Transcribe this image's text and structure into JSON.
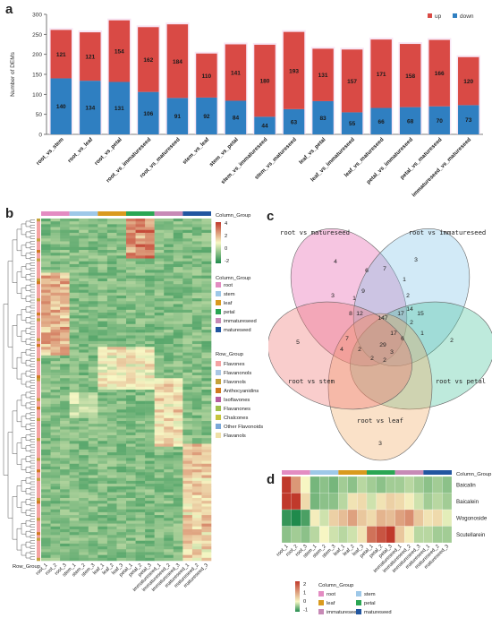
{
  "panel_labels": {
    "a": "a",
    "b": "b",
    "c": "c",
    "d": "d"
  },
  "chart_data": [
    {
      "type": "bar",
      "stacked": true,
      "ylabel": "Number of DEMs",
      "ylim": [
        0,
        300
      ],
      "yticks": [
        0,
        50,
        100,
        150,
        200,
        250,
        300
      ],
      "legend": "top-right",
      "categories": [
        "root_vs_stem",
        "root_vs_leaf",
        "root_vs_petal",
        "root_vs_immatureseed",
        "root_vs_matureseed",
        "stem_vs_leaf",
        "stem_vs_petal",
        "stem_vs_immatureseed",
        "stem_vs_matureseed",
        "leaf_vs_petal",
        "leaf_vs_immatureseed",
        "leaf_vs_matureseed",
        "petal_vs_immatureseed",
        "petal_vs_matureseed",
        "immatureseed_vs_matureseed"
      ],
      "series": [
        {
          "name": "down",
          "color": "#2f7fc1",
          "values": [
            140,
            134,
            131,
            106,
            91,
            92,
            84,
            44,
            63,
            83,
            55,
            66,
            68,
            70,
            73
          ]
        },
        {
          "name": "up",
          "color": "#d94a45",
          "values": [
            121,
            121,
            154,
            162,
            184,
            110,
            141,
            180,
            193,
            131,
            157,
            171,
            158,
            166,
            120
          ]
        }
      ]
    },
    {
      "type": "heatmap",
      "column_group_title": "Column_Group",
      "row_group_title": "Row_Group",
      "row_group_axis_label": "Row_Group",
      "color_scale": {
        "ticks": [
          "4",
          "2",
          "0",
          "-2"
        ],
        "colors": [
          "#c0392b",
          "#f7f7c4",
          "#1f8a4c"
        ]
      },
      "column_groups": [
        {
          "name": "root",
          "color": "#e38cc2"
        },
        {
          "name": "stem",
          "color": "#9ec8e8"
        },
        {
          "name": "leaf",
          "color": "#d99a1e"
        },
        {
          "name": "petal",
          "color": "#2aa653"
        },
        {
          "name": "immatureseed",
          "color": "#c78ab6"
        },
        {
          "name": "matureseed",
          "color": "#2256a0"
        }
      ],
      "row_groups": [
        {
          "name": "Flavones",
          "color": "#f4a3a3"
        },
        {
          "name": "Flavanonols",
          "color": "#a9c7e4"
        },
        {
          "name": "Flavonols",
          "color": "#c4a23a"
        },
        {
          "name": "Anthocyanidins",
          "color": "#d07a1e"
        },
        {
          "name": "Isoflavones",
          "color": "#b65c9e"
        },
        {
          "name": "Flavanones",
          "color": "#9fbf4a"
        },
        {
          "name": "Chalcones",
          "color": "#c6c43c"
        },
        {
          "name": "Other Flavonoids",
          "color": "#7aa8d8"
        },
        {
          "name": "Flavanols",
          "color": "#efe0a8"
        }
      ],
      "columns": [
        "root_1",
        "root_2",
        "root_3",
        "stem_1",
        "stem_2",
        "stem_3",
        "leaf_1",
        "leaf_2",
        "leaf_3",
        "petal_1",
        "petal_2",
        "petal_3",
        "immatureseed_1",
        "immatureseed_2",
        "immatureseed_3",
        "matureseed_1",
        "matureseed_2",
        "matureseed_3"
      ]
    },
    {
      "type": "venn",
      "sets": [
        "root vs matureseed",
        "root vs immatureseed",
        "root vs petal",
        "root vs leaf",
        "root vs stem"
      ],
      "region_counts": [
        "4",
        "3",
        "2",
        "3",
        "5",
        "6",
        "7",
        "1",
        "2",
        "3",
        "1",
        "9",
        "2",
        "1",
        "8",
        "12",
        "147",
        "17",
        "14",
        "15",
        "7",
        "29",
        "17",
        "6",
        "3",
        "4",
        "2",
        "2",
        "2"
      ]
    },
    {
      "type": "heatmap",
      "column_group_title": "Column_Group",
      "legend_title": "Column_Group",
      "rows": [
        "Baicalin",
        "Baicalein",
        "Wogonoside",
        "Scutellarein"
      ],
      "columns": [
        "root_1",
        "root_2",
        "root_3",
        "stem_1",
        "stem_2",
        "stem_3",
        "leaf_1",
        "leaf_2",
        "leaf_3",
        "petal_1",
        "petal_2",
        "petal_3",
        "immatureseed_1",
        "immatureseed_2",
        "immatureseed_3",
        "matureseed_1",
        "matureseed_2",
        "matureseed_3"
      ],
      "color_scale": {
        "ticks": [
          "2",
          "1",
          "0",
          "-1"
        ]
      },
      "legend": [
        {
          "name": "root",
          "color": "#e38cc2"
        },
        {
          "name": "stem",
          "color": "#9ec8e8"
        },
        {
          "name": "leaf",
          "color": "#d99a1e"
        },
        {
          "name": "petal",
          "color": "#2aa653"
        },
        {
          "name": "immatureseed",
          "color": "#c78ab6"
        },
        {
          "name": "matureseed",
          "color": "#2256a0"
        }
      ],
      "values": [
        [
          2.0,
          1.0,
          0.0,
          -0.6,
          -0.5,
          -0.6,
          -0.4,
          -0.5,
          -0.3,
          -0.4,
          -0.5,
          -0.4,
          -0.4,
          -0.3,
          -0.4,
          -0.5,
          -0.4,
          -0.5
        ],
        [
          2.5,
          2.0,
          0.3,
          -0.6,
          -0.5,
          -0.5,
          -0.3,
          0.2,
          0.3,
          -0.2,
          0.2,
          0.4,
          0.3,
          0.1,
          -0.2,
          -0.4,
          -0.3,
          -0.4
        ],
        [
          -0.9,
          -1.0,
          -0.8,
          0.1,
          -0.2,
          0.4,
          0.6,
          0.9,
          0.5,
          0.3,
          0.7,
          0.6,
          0.9,
          1.1,
          0.5,
          0.2,
          0.3,
          -0.1
        ],
        [
          -0.5,
          -0.4,
          -0.5,
          -0.3,
          0.0,
          -0.2,
          -0.3,
          -0.2,
          0.2,
          1.4,
          1.7,
          2.6,
          0.5,
          0.1,
          -0.3,
          -0.3,
          -0.4,
          -0.4
        ]
      ]
    }
  ]
}
